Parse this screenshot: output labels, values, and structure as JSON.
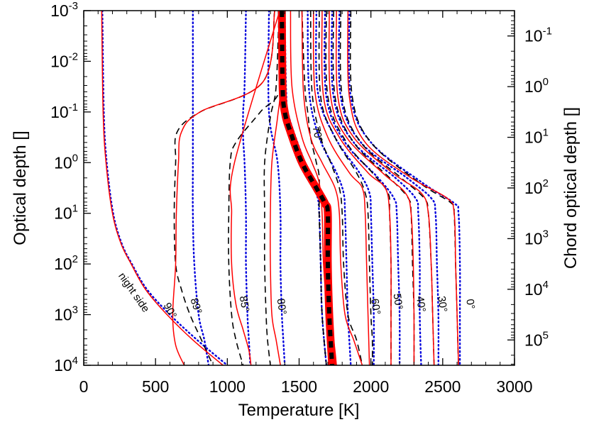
{
  "chart_data": {
    "type": "line",
    "xlabel": "Temperature [K]",
    "ylabel": "Optical depth []",
    "y2label": "Chord optical depth []",
    "xlim": [
      0,
      3000
    ],
    "ylim_log10": [
      -3,
      4
    ],
    "y2lim_log10": [
      -1.5,
      5.5
    ],
    "y_scale": "log (reversed, depth increases downward)",
    "x_ticks": [
      0,
      500,
      1000,
      1500,
      2000,
      2500,
      3000
    ],
    "x_tick_labels": [
      "0",
      "500",
      "1000",
      "1500",
      "2000",
      "2500",
      "3000"
    ],
    "y_ticks_log10": [
      -3,
      -2,
      -1,
      0,
      1,
      2,
      3,
      4
    ],
    "y_tick_labels": [
      {
        "base": "10",
        "exp": "-3"
      },
      {
        "base": "10",
        "exp": "-2"
      },
      {
        "base": "10",
        "exp": "-1"
      },
      {
        "base": "10",
        "exp": "0"
      },
      {
        "base": "10",
        "exp": "1"
      },
      {
        "base": "10",
        "exp": "2"
      },
      {
        "base": "10",
        "exp": "3"
      },
      {
        "base": "10",
        "exp": "4"
      }
    ],
    "y2_ticks_log10": [
      -1,
      0,
      1,
      2,
      3,
      4,
      5
    ],
    "y2_tick_labels": [
      {
        "base": "10",
        "exp": "-1"
      },
      {
        "base": "10",
        "exp": "0"
      },
      {
        "base": "10",
        "exp": "1"
      },
      {
        "base": "10",
        "exp": "2"
      },
      {
        "base": "10",
        "exp": "3"
      },
      {
        "base": "10",
        "exp": "4"
      },
      {
        "base": "10",
        "exp": "5"
      }
    ],
    "series_styles": [
      {
        "name": "model (solid)",
        "color": "#ff0000"
      },
      {
        "name": "model (dashed)",
        "color": "#000000"
      },
      {
        "name": "model (dotted)",
        "color": "#0000dd"
      }
    ],
    "profiles_solid": [
      {
        "name": "solid night side",
        "tau_log10": [
          -3,
          -1.6,
          -1,
          -0.6,
          0,
          1,
          2,
          3,
          3.6,
          4
        ],
        "temp": [
          1330,
          1250,
          810,
          680,
          660,
          645,
          640,
          620,
          640,
          700
        ]
      },
      {
        "name": "solid 90",
        "tau_log10": [
          -3,
          -1,
          0,
          1,
          1.6,
          2,
          2.5,
          3,
          3.5,
          4
        ],
        "temp": [
          125,
          135,
          155,
          200,
          260,
          330,
          430,
          580,
          760,
          970
        ]
      },
      {
        "name": "solid 85",
        "tau_log10": [
          -3,
          0,
          1,
          2,
          2.8,
          3.3,
          3.7,
          4
        ],
        "temp": [
          1365,
          1050,
          1030,
          1030,
          1060,
          1110,
          1150,
          1165
        ]
      },
      {
        "name": "solid 80",
        "tau_log10": [
          -3,
          -1.5,
          -0.9,
          0,
          1,
          2,
          3,
          3.5,
          4
        ],
        "temp": [
          1370,
          1370,
          1350,
          1310,
          1300,
          1300,
          1310,
          1340,
          1370
        ]
      },
      {
        "name": "solid 75",
        "tau_log10": [
          -3,
          -1.5,
          -0.5,
          0,
          0.4,
          1,
          2,
          3,
          3.5,
          4
        ],
        "temp": [
          1440,
          1450,
          1520,
          1590,
          1640,
          1660,
          1670,
          1700,
          1740,
          1760
        ]
      },
      {
        "name": "solid 70",
        "tau_log10": [
          -3,
          -1.4,
          -0.5,
          0,
          0.5,
          1,
          2,
          3,
          3.5,
          4
        ],
        "temp": [
          1520,
          1530,
          1580,
          1660,
          1750,
          1780,
          1790,
          1820,
          1880,
          1940
        ]
      },
      {
        "name": "solid 60",
        "tau_log10": [
          -3,
          -1.4,
          -0.5,
          0.2,
          0.5,
          1,
          2,
          3,
          4
        ],
        "temp": [
          1600,
          1610,
          1700,
          1850,
          1940,
          1960,
          1970,
          1980,
          1990
        ]
      },
      {
        "name": "solid 50",
        "tau_log10": [
          -3,
          -1.3,
          -0.5,
          0.2,
          0.5,
          1,
          2,
          3,
          4
        ],
        "temp": [
          1660,
          1670,
          1780,
          1980,
          2100,
          2130,
          2140,
          2140,
          2140
        ]
      },
      {
        "name": "solid 40",
        "tau_log10": [
          -3,
          -1.3,
          -0.5,
          0.2,
          0.6,
          1,
          2,
          3,
          4
        ],
        "temp": [
          1710,
          1720,
          1830,
          2080,
          2240,
          2280,
          2295,
          2300,
          2300
        ]
      },
      {
        "name": "solid 30",
        "tau_log10": [
          -3,
          -1.3,
          -0.5,
          0.2,
          0.6,
          1,
          2,
          3,
          4
        ],
        "temp": [
          1760,
          1770,
          1880,
          2150,
          2350,
          2400,
          2420,
          2430,
          2440
        ]
      },
      {
        "name": "solid 0",
        "tau_log10": [
          -3,
          -1.3,
          -0.4,
          0.3,
          0.7,
          1,
          2,
          3,
          4
        ],
        "temp": [
          1840,
          1850,
          1960,
          2280,
          2530,
          2580,
          2590,
          2600,
          2610
        ]
      }
    ],
    "profiles_dashed": [
      {
        "name": "dashed 90",
        "tau_log10": [
          -3,
          -1.6,
          -1,
          -0.6,
          0,
          1,
          2,
          2.5,
          3,
          3.5,
          4
        ],
        "temp": [
          1330,
          1250,
          810,
          650,
          640,
          630,
          640,
          680,
          740,
          820,
          900
        ]
      },
      {
        "name": "dashed 85",
        "tau_log10": [
          -3,
          -1.5,
          -1,
          -0.4,
          0,
          1,
          2,
          3,
          3.5,
          4
        ],
        "temp": [
          1355,
          1370,
          1230,
          1060,
          1020,
          1010,
          1010,
          1030,
          1060,
          1110
        ]
      },
      {
        "name": "dashed 80",
        "tau_log10": [
          -3,
          -1.5,
          -0.9,
          0,
          1,
          2,
          3,
          3.5,
          4
        ],
        "temp": [
          1360,
          1340,
          1300,
          1260,
          1260,
          1260,
          1270,
          1280,
          1300
        ]
      },
      {
        "name": "dashed 75",
        "tau_log10": [
          -3,
          -1.5,
          -1,
          -0.5,
          0,
          0.3,
          1,
          2,
          3,
          4
        ],
        "temp": [
          1520,
          1540,
          1560,
          1580,
          1620,
          1640,
          1640,
          1650,
          1660,
          1690
        ]
      },
      {
        "name": "dashed 70",
        "tau_log10": [
          -3,
          -1.4,
          -0.5,
          0,
          0.5,
          1,
          2,
          3,
          3.5,
          4
        ],
        "temp": [
          1580,
          1590,
          1650,
          1720,
          1780,
          1800,
          1810,
          1840,
          1900,
          1940
        ]
      },
      {
        "name": "dashed 60",
        "tau_log10": [
          -3,
          -1.3,
          -0.5,
          0.2,
          0.6,
          1,
          2,
          3,
          3.5,
          4
        ],
        "temp": [
          1640,
          1650,
          1750,
          1900,
          1960,
          1980,
          1990,
          2000,
          2010,
          2010
        ]
      },
      {
        "name": "dashed 50",
        "tau_log10": [
          -3,
          -1.3,
          -0.4,
          0.2,
          0.6,
          1,
          2,
          3,
          4
        ],
        "temp": [
          1690,
          1700,
          1830,
          2010,
          2120,
          2130,
          2140,
          2140,
          2140
        ]
      },
      {
        "name": "dashed 40",
        "tau_log10": [
          -3,
          -1.3,
          -0.4,
          0.3,
          0.7,
          1,
          2,
          3,
          4
        ],
        "temp": [
          1740,
          1750,
          1880,
          2130,
          2260,
          2280,
          2290,
          2300,
          2300
        ]
      },
      {
        "name": "dashed 30",
        "tau_log10": [
          -3,
          -1.3,
          -0.4,
          0.3,
          0.7,
          1,
          2,
          3,
          4
        ],
        "temp": [
          1790,
          1800,
          1930,
          2210,
          2370,
          2400,
          2420,
          2430,
          2440
        ]
      },
      {
        "name": "dashed 0",
        "tau_log10": [
          -3,
          -1.3,
          -0.4,
          0.4,
          0.8,
          1,
          2,
          3,
          4
        ],
        "temp": [
          1860,
          1870,
          2000,
          2340,
          2560,
          2580,
          2590,
          2600,
          2610
        ]
      }
    ],
    "profiles_dotted": [
      {
        "name": "dotted 90",
        "tau_log10": [
          -3,
          -1,
          0,
          1,
          1.6,
          2,
          2.5,
          3,
          3.5,
          4
        ],
        "temp": [
          130,
          140,
          160,
          205,
          265,
          335,
          440,
          600,
          790,
          1000
        ]
      },
      {
        "name": "dotted 89",
        "tau_log10": [
          -3,
          -1,
          0,
          1,
          2,
          3,
          3.5,
          4
        ],
        "temp": [
          760,
          760,
          760,
          760,
          770,
          800,
          840,
          870
        ]
      },
      {
        "name": "dotted 85",
        "tau_log10": [
          -3,
          -1.5,
          -1,
          -0.5,
          0,
          1,
          2,
          3,
          3.5,
          4
        ],
        "temp": [
          1130,
          1120,
          1110,
          1110,
          1120,
          1130,
          1130,
          1140,
          1150,
          1160
        ]
      },
      {
        "name": "dotted 80",
        "tau_log10": [
          -3,
          -1,
          0,
          1,
          2,
          3,
          3.5,
          4
        ],
        "temp": [
          1290,
          1290,
          1350,
          1370,
          1370,
          1380,
          1390,
          1400
        ]
      },
      {
        "name": "dotted 75",
        "tau_log10": [
          -3,
          -1.4,
          -0.9,
          0,
          0.6,
          1,
          2,
          3,
          4
        ],
        "temp": [
          1400,
          1410,
          1430,
          1540,
          1620,
          1640,
          1650,
          1660,
          1690
        ]
      },
      {
        "name": "dotted 70",
        "tau_log10": [
          -3,
          -1.4,
          -0.5,
          0.2,
          0.6,
          1,
          2,
          3,
          4
        ],
        "temp": [
          1560,
          1570,
          1640,
          1760,
          1810,
          1820,
          1830,
          1840,
          1860
        ]
      },
      {
        "name": "dotted 60",
        "tau_log10": [
          -3,
          -1.4,
          -0.5,
          0.2,
          0.6,
          1,
          2,
          3,
          4
        ],
        "temp": [
          1620,
          1630,
          1750,
          1920,
          1990,
          2000,
          2010,
          2020,
          2020
        ]
      },
      {
        "name": "dotted 50",
        "tau_log10": [
          -3,
          -1.3,
          -0.4,
          0.3,
          0.7,
          1,
          2,
          3,
          4
        ],
        "temp": [
          1680,
          1690,
          1820,
          2050,
          2160,
          2180,
          2190,
          2200,
          2200
        ]
      },
      {
        "name": "dotted 40",
        "tau_log10": [
          -3,
          -1.3,
          -0.4,
          0.3,
          0.7,
          1,
          2,
          3,
          4
        ],
        "temp": [
          1730,
          1740,
          1880,
          2170,
          2310,
          2330,
          2340,
          2340,
          2350
        ]
      },
      {
        "name": "dotted 30",
        "tau_log10": [
          -3,
          -1.3,
          -0.4,
          0.3,
          0.7,
          1,
          2,
          3,
          4
        ],
        "temp": [
          1780,
          1790,
          1930,
          2250,
          2420,
          2450,
          2460,
          2470,
          2470
        ]
      },
      {
        "name": "dotted 0",
        "tau_log10": [
          -3,
          -1.3,
          -0.4,
          0.4,
          0.8,
          1,
          2,
          3,
          4
        ],
        "temp": [
          1850,
          1860,
          2000,
          2360,
          2580,
          2610,
          2620,
          2620,
          2620
        ]
      }
    ],
    "mean_profile": {
      "name": "mean profile (thick)",
      "tau_log10": [
        -3,
        -1.5,
        -1,
        -0.6,
        0,
        0.5,
        0.8,
        1,
        2,
        3,
        4
      ],
      "temp": [
        1380,
        1385,
        1400,
        1440,
        1520,
        1620,
        1680,
        1700,
        1700,
        1710,
        1730
      ]
    },
    "annotations": [
      {
        "text": "night side",
        "temp": 330,
        "tau_log10": 2.6,
        "angle": 55
      },
      {
        "text": "90°",
        "temp": 580,
        "tau_log10": 2.95,
        "angle": 62
      },
      {
        "text": "89°",
        "temp": 760,
        "tau_log10": 2.85,
        "angle": 72
      },
      {
        "text": "85°",
        "temp": 1095,
        "tau_log10": 2.8,
        "angle": 80
      },
      {
        "text": "80°",
        "temp": 1355,
        "tau_log10": 2.85,
        "angle": 82
      },
      {
        "text": "70°",
        "temp": 1605,
        "tau_log10": -0.55,
        "angle": 80
      },
      {
        "text": "60°",
        "temp": 2010,
        "tau_log10": 2.85,
        "angle": 82
      },
      {
        "text": "50°",
        "temp": 2165,
        "tau_log10": 2.75,
        "angle": 82
      },
      {
        "text": "40°",
        "temp": 2325,
        "tau_log10": 2.8,
        "angle": 82
      },
      {
        "text": "30°",
        "temp": 2475,
        "tau_log10": 2.8,
        "angle": 82
      },
      {
        "text": "0°",
        "temp": 2670,
        "tau_log10": 2.8,
        "angle": 82
      }
    ]
  }
}
